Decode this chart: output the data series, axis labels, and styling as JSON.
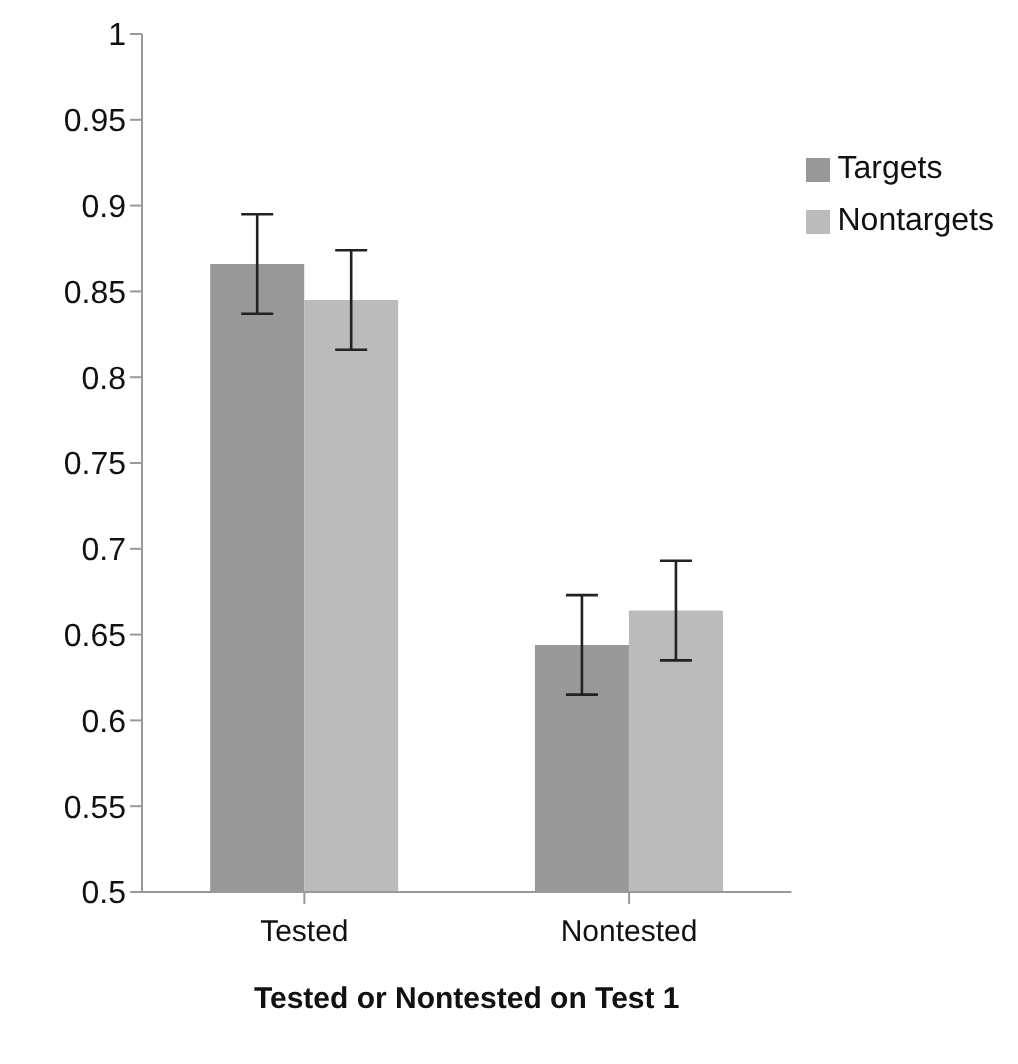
{
  "chart_data": {
    "type": "bar",
    "xlabel": "Tested or Nontested on Test 1",
    "categories": [
      "Tested",
      "Nontested"
    ],
    "series": [
      {
        "name": "Targets",
        "color": "#999999",
        "values": [
          0.866,
          0.644
        ],
        "errors": [
          0.029,
          0.029
        ]
      },
      {
        "name": "Nontargets",
        "color": "#bbbbbb",
        "values": [
          0.845,
          0.664
        ],
        "errors": [
          0.029,
          0.029
        ]
      }
    ],
    "ylim": [
      0.5,
      1
    ],
    "yticks": [
      0.5,
      0.55,
      0.6,
      0.65,
      0.7,
      0.75,
      0.8,
      0.85,
      0.9,
      0.95,
      1
    ],
    "grid": false,
    "legend": "top right"
  }
}
